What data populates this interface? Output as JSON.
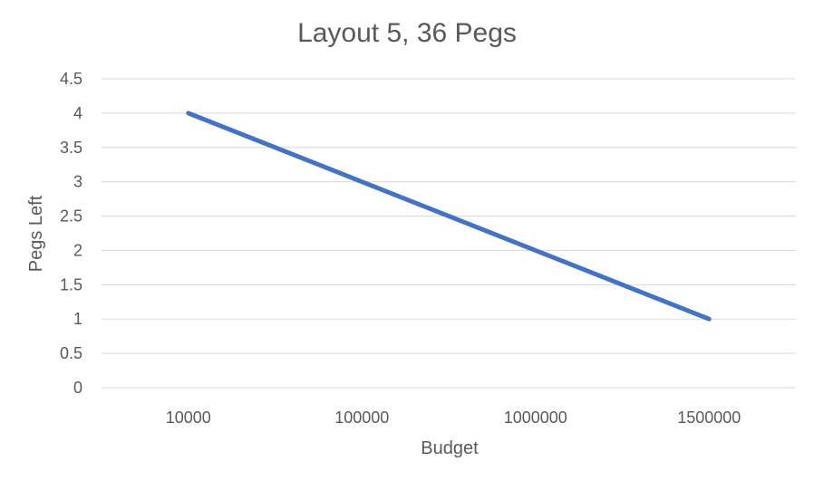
{
  "chart_data": {
    "type": "line",
    "title": "Layout 5, 36 Pegs",
    "xlabel": "Budget",
    "ylabel": "Pegs Left",
    "categories": [
      "10000",
      "100000",
      "1000000",
      "1500000"
    ],
    "series": [
      {
        "values": [
          4,
          3,
          2,
          1
        ],
        "color": "#4472c4"
      }
    ],
    "ylim": [
      0,
      4.5
    ],
    "y_ticks": [
      "0",
      "0.5",
      "1",
      "1.5",
      "2",
      "2.5",
      "3",
      "3.5",
      "4",
      "4.5"
    ],
    "grid": true,
    "legend": "none"
  }
}
